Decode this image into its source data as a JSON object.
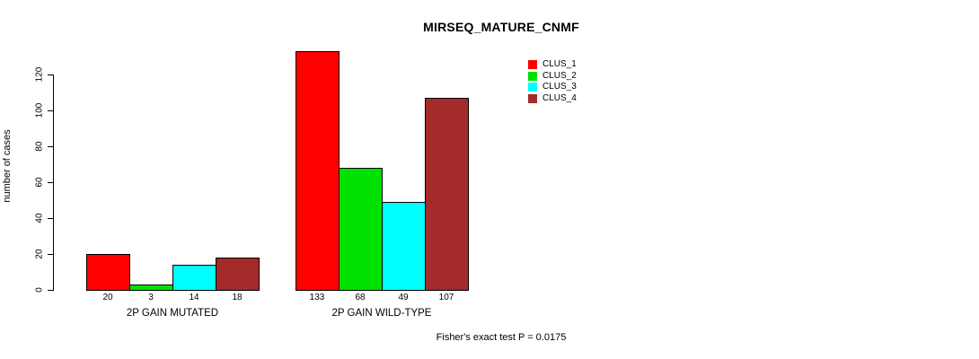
{
  "title": "MIRSEQ_MATURE_CNMF",
  "footer": "Fisher's exact test P = 0.0175",
  "y_axis": {
    "label": "number of cases",
    "ticks": [
      0,
      20,
      40,
      60,
      80,
      100,
      120
    ]
  },
  "legend": {
    "position": "top-right",
    "items": [
      {
        "label": "CLUS_1",
        "color": "#FF0000"
      },
      {
        "label": "CLUS_2",
        "color": "#00E100"
      },
      {
        "label": "CLUS_3",
        "color": "#00FFFF"
      },
      {
        "label": "CLUS_4",
        "color": "#A52A2A"
      }
    ]
  },
  "chart_data": {
    "type": "bar",
    "title": "MIRSEQ_MATURE_CNMF",
    "xlabel": "",
    "ylabel": "number of cases",
    "ylim": [
      0,
      133
    ],
    "yticks": [
      0,
      20,
      40,
      60,
      80,
      100,
      120
    ],
    "grid": false,
    "legend_position": "top-right",
    "categories": [
      "2P GAIN MUTATED",
      "2P GAIN WILD-TYPE"
    ],
    "series": [
      {
        "name": "CLUS_1",
        "color": "#FF0000",
        "values": [
          20,
          133
        ]
      },
      {
        "name": "CLUS_2",
        "color": "#00E100",
        "values": [
          3,
          68
        ]
      },
      {
        "name": "CLUS_3",
        "color": "#00FFFF",
        "values": [
          14,
          49
        ]
      },
      {
        "name": "CLUS_4",
        "color": "#A52A2A",
        "values": [
          18,
          107
        ]
      }
    ],
    "bar_value_labels": [
      [
        20,
        3,
        14,
        18
      ],
      [
        133,
        68,
        49,
        107
      ]
    ],
    "annotation": "Fisher's exact test P = 0.0175"
  }
}
